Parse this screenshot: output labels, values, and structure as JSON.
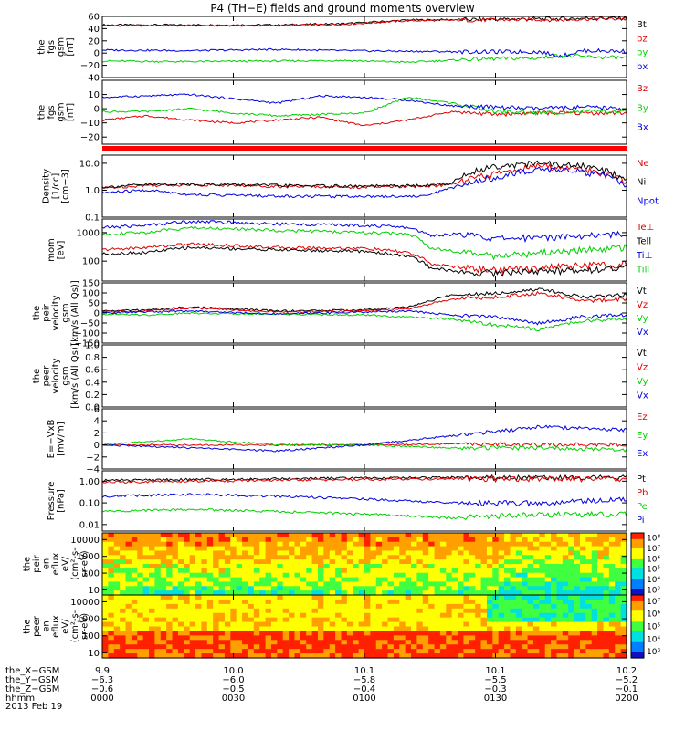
{
  "title": "P4 (TH−E) fields and ground moments overview",
  "date_label": "2013 Feb 19",
  "colors": {
    "black": "#000000",
    "red": "#e00000",
    "green": "#00d000",
    "blue": "#0000e0"
  },
  "chart_data": [
    {
      "type": "line",
      "ylabel": [
        "the",
        "fgs",
        "gsm",
        "[nT]"
      ],
      "ylim": [
        -40,
        60
      ],
      "yticks": [
        {
          "v": -40,
          "label": "−40"
        },
        {
          "v": -20,
          "label": "−20"
        },
        {
          "v": 0,
          "label": "0"
        },
        {
          "v": 20,
          "label": "20"
        },
        {
          "v": 40,
          "label": "40"
        },
        {
          "v": 60,
          "label": "60"
        }
      ],
      "series": [
        {
          "name": "Bt",
          "color": "#000000",
          "x": [
            0,
            20,
            40,
            55,
            70,
            85,
            100,
            105,
            110,
            120
          ],
          "y": [
            46,
            46,
            46,
            48,
            54,
            55,
            56,
            56,
            57,
            57
          ]
        },
        {
          "name": "bz",
          "color": "#e00000",
          "x": [
            0,
            20,
            40,
            55,
            70,
            85,
            100,
            105,
            110,
            120
          ],
          "y": [
            45,
            45,
            45,
            47,
            53,
            54,
            55,
            54,
            56,
            56
          ]
        },
        {
          "name": "by",
          "color": "#00d000",
          "x": [
            0,
            20,
            40,
            55,
            70,
            85,
            100,
            105,
            110,
            120
          ],
          "y": [
            -13,
            -14,
            -13,
            -12,
            -15,
            -10,
            -8,
            -4,
            -6,
            -8
          ]
        },
        {
          "name": "bx",
          "color": "#0000e0",
          "x": [
            0,
            20,
            40,
            55,
            70,
            85,
            100,
            105,
            110,
            120
          ],
          "y": [
            5,
            4,
            6,
            4,
            3,
            2,
            2,
            -5,
            4,
            3
          ]
        }
      ]
    },
    {
      "type": "line",
      "ylabel": [
        "the",
        "fgs",
        "gsm",
        "[nT]"
      ],
      "ylim": [
        -25,
        20
      ],
      "yticks": [
        {
          "v": -20,
          "label": "−20"
        },
        {
          "v": -10,
          "label": "−10"
        },
        {
          "v": 0,
          "label": "0"
        },
        {
          "v": 10,
          "label": "10"
        }
      ],
      "series": [
        {
          "name": "Bz",
          "color": "#e00000",
          "x": [
            0,
            10,
            20,
            30,
            40,
            50,
            60,
            70,
            80,
            90,
            100,
            110,
            120
          ],
          "y": [
            -8,
            -5,
            -8,
            -10,
            -8,
            -6,
            -12,
            -8,
            -2,
            -4,
            -3,
            -3,
            -3
          ]
        },
        {
          "name": "By",
          "color": "#00d000",
          "x": [
            0,
            10,
            20,
            30,
            40,
            50,
            60,
            70,
            80,
            90,
            100,
            110,
            120
          ],
          "y": [
            -2,
            -2,
            0,
            -3,
            -5,
            -4,
            -3,
            8,
            4,
            -2,
            -3,
            -2,
            -2
          ]
        },
        {
          "name": "Bx",
          "color": "#0000e0",
          "x": [
            0,
            10,
            20,
            30,
            40,
            50,
            60,
            70,
            80,
            90,
            100,
            110,
            120
          ],
          "y": [
            8,
            9,
            10,
            7,
            4,
            9,
            8,
            6,
            2,
            1,
            0,
            1,
            0
          ]
        }
      ]
    },
    {
      "type": "line",
      "ylabel": [
        "Density",
        "[1/cc]",
        "[cm−3]"
      ],
      "yscale": "log",
      "ylim": [
        0.1,
        20
      ],
      "yticks": [
        {
          "v": 0.1,
          "label": "0.1"
        },
        {
          "v": 1,
          "label": "1.0"
        },
        {
          "v": 10,
          "label": "10.0"
        }
      ],
      "series": [
        {
          "name": "Ne",
          "color": "#e00000",
          "x": [
            0,
            10,
            20,
            40,
            60,
            74,
            80,
            90,
            100,
            110,
            120
          ],
          "y": [
            1.2,
            1.5,
            1.6,
            1.4,
            1.3,
            1.4,
            1.6,
            4,
            8,
            6,
            2
          ]
        },
        {
          "name": "Ni",
          "color": "#000000",
          "x": [
            0,
            10,
            20,
            40,
            60,
            74,
            80,
            90,
            100,
            110,
            120
          ],
          "y": [
            1.3,
            1.6,
            1.7,
            1.5,
            1.4,
            1.5,
            1.8,
            8,
            10,
            8,
            2.5
          ]
        },
        {
          "name": "Npot",
          "color": "#0000e0",
          "x": [
            0,
            10,
            20,
            40,
            60,
            74,
            80,
            90,
            100,
            110,
            120
          ],
          "y": [
            0.8,
            1.0,
            0.7,
            0.6,
            0.6,
            0.6,
            1.2,
            3,
            6,
            5,
            1.5
          ]
        }
      ]
    },
    {
      "type": "line",
      "ylabel": [
        "mom",
        "[eV]"
      ],
      "yscale": "log",
      "ylim": [
        20,
        3000
      ],
      "yticks": [
        {
          "v": 100,
          "label": "100"
        },
        {
          "v": 1000,
          "label": "1000"
        }
      ],
      "series": [
        {
          "name": "Te⊥",
          "color": "#e00000",
          "x": [
            0,
            10,
            20,
            40,
            60,
            70,
            75,
            82,
            90,
            100,
            110,
            120
          ],
          "y": [
            250,
            300,
            400,
            300,
            280,
            200,
            80,
            60,
            50,
            60,
            70,
            80
          ]
        },
        {
          "name": "Tell",
          "color": "#000000",
          "x": [
            0,
            10,
            20,
            40,
            60,
            70,
            75,
            82,
            90,
            100,
            110,
            120
          ],
          "y": [
            180,
            200,
            300,
            250,
            220,
            150,
            60,
            40,
            40,
            45,
            50,
            60
          ]
        },
        {
          "name": "Ti⊥",
          "color": "#0000e0",
          "x": [
            0,
            10,
            20,
            40,
            60,
            70,
            75,
            82,
            90,
            100,
            110,
            120
          ],
          "y": [
            1500,
            1800,
            2500,
            2000,
            1800,
            1500,
            800,
            900,
            600,
            700,
            800,
            900
          ]
        },
        {
          "name": "Till",
          "color": "#00d000",
          "x": [
            0,
            10,
            20,
            40,
            60,
            70,
            75,
            82,
            90,
            100,
            110,
            120
          ],
          "y": [
            900,
            1000,
            1500,
            1200,
            1000,
            900,
            300,
            200,
            150,
            200,
            250,
            300
          ]
        }
      ]
    },
    {
      "type": "line",
      "ylabel": [
        "the",
        "peir",
        "velocity",
        "gsm",
        "[km/s (All Qs)]"
      ],
      "ylim": [
        -150,
        150
      ],
      "yticks": [
        {
          "v": -150,
          "label": "−150"
        },
        {
          "v": -100,
          "label": "−100"
        },
        {
          "v": -50,
          "label": "−50"
        },
        {
          "v": 0,
          "label": "0"
        },
        {
          "v": 50,
          "label": "50"
        },
        {
          "v": 100,
          "label": "100"
        },
        {
          "v": 150,
          "label": "150"
        }
      ],
      "series": [
        {
          "name": "Vt",
          "color": "#000000",
          "x": [
            0,
            10,
            20,
            40,
            60,
            70,
            80,
            90,
            100,
            110,
            120
          ],
          "y": [
            10,
            15,
            30,
            10,
            15,
            30,
            90,
            100,
            120,
            80,
            90
          ]
        },
        {
          "name": "Vz",
          "color": "#e00000",
          "x": [
            0,
            10,
            20,
            40,
            60,
            70,
            80,
            90,
            100,
            110,
            120
          ],
          "y": [
            5,
            10,
            25,
            5,
            10,
            20,
            70,
            80,
            100,
            60,
            70
          ]
        },
        {
          "name": "Vy",
          "color": "#00d000",
          "x": [
            0,
            10,
            20,
            40,
            60,
            70,
            80,
            90,
            100,
            110,
            120
          ],
          "y": [
            -5,
            -10,
            0,
            -5,
            -10,
            -20,
            -30,
            -60,
            -80,
            -40,
            -30
          ]
        },
        {
          "name": "Vx",
          "color": "#0000e0",
          "x": [
            0,
            10,
            20,
            40,
            60,
            70,
            80,
            90,
            100,
            110,
            120
          ],
          "y": [
            0,
            5,
            10,
            -5,
            5,
            10,
            -10,
            -20,
            -50,
            -20,
            -10
          ]
        }
      ]
    },
    {
      "type": "line",
      "ylabel": [
        "the",
        "peer",
        "velocity",
        "gsm",
        "[km/s (All Qs)]"
      ],
      "ylim": [
        0,
        1
      ],
      "yticks": [
        {
          "v": 0,
          "label": "0.0"
        },
        {
          "v": 0.2,
          "label": "0.2"
        },
        {
          "v": 0.4,
          "label": "0.4"
        },
        {
          "v": 0.6,
          "label": "0.6"
        },
        {
          "v": 0.8,
          "label": "0.8"
        },
        {
          "v": 1.0,
          "label": "1.0"
        }
      ],
      "series": [
        {
          "name": "Vt",
          "color": "#000000",
          "x": [],
          "y": []
        },
        {
          "name": "Vz",
          "color": "#e00000",
          "x": [],
          "y": []
        },
        {
          "name": "Vy",
          "color": "#00d000",
          "x": [],
          "y": []
        },
        {
          "name": "Vx",
          "color": "#0000e0",
          "x": [],
          "y": []
        }
      ]
    },
    {
      "type": "line",
      "ylabel": [
        "E=−VxB",
        "[mV/m]"
      ],
      "ylim": [
        -4,
        6
      ],
      "yticks": [
        {
          "v": -4,
          "label": "−4"
        },
        {
          "v": -2,
          "label": "−2"
        },
        {
          "v": 0,
          "label": "0"
        },
        {
          "v": 2,
          "label": "2"
        },
        {
          "v": 4,
          "label": "4"
        },
        {
          "v": 6,
          "label": "6"
        }
      ],
      "series": [
        {
          "name": "Ez",
          "color": "#e00000",
          "x": [
            0,
            20,
            40,
            60,
            80,
            100,
            120
          ],
          "y": [
            0,
            0,
            0,
            0,
            0.2,
            0,
            0.1
          ]
        },
        {
          "name": "Ey",
          "color": "#00d000",
          "x": [
            0,
            20,
            40,
            60,
            80,
            100,
            120
          ],
          "y": [
            0,
            1.0,
            0,
            0,
            -0.5,
            -0.5,
            -0.8
          ]
        },
        {
          "name": "Ex",
          "color": "#0000e0",
          "x": [
            0,
            20,
            40,
            60,
            80,
            100,
            120
          ],
          "y": [
            0,
            -0.5,
            -1,
            0,
            1.5,
            3,
            2.5
          ]
        }
      ]
    },
    {
      "type": "line",
      "ylabel": [
        "Pressure",
        "[nPa]"
      ],
      "yscale": "log",
      "ylim": [
        0.005,
        3
      ],
      "yticks": [
        {
          "v": 0.01,
          "label": "0.01"
        },
        {
          "v": 0.1,
          "label": "0.10"
        },
        {
          "v": 1,
          "label": "1.00"
        }
      ],
      "series": [
        {
          "name": "Pt",
          "color": "#000000",
          "x": [
            0,
            20,
            40,
            60,
            80,
            100,
            120
          ],
          "y": [
            1.1,
            1.2,
            1.3,
            1.4,
            1.5,
            1.5,
            1.5
          ]
        },
        {
          "name": "Pb",
          "color": "#e00000",
          "x": [
            0,
            20,
            40,
            60,
            80,
            100,
            120
          ],
          "y": [
            0.9,
            1.0,
            1.1,
            1.2,
            1.3,
            1.3,
            1.3
          ]
        },
        {
          "name": "Pe",
          "color": "#00d000",
          "x": [
            0,
            20,
            40,
            60,
            80,
            100,
            120
          ],
          "y": [
            0.04,
            0.05,
            0.04,
            0.03,
            0.02,
            0.03,
            0.03
          ]
        },
        {
          "name": "Pi",
          "color": "#0000e0",
          "x": [
            0,
            20,
            40,
            60,
            80,
            100,
            120
          ],
          "y": [
            0.2,
            0.25,
            0.2,
            0.15,
            0.1,
            0.1,
            0.15
          ]
        }
      ]
    },
    {
      "type": "heatmap",
      "ylabel": [
        "the",
        "peir",
        "en",
        "eflux",
        "eV/",
        "(cm²-s-",
        "sr-eV)"
      ],
      "yscale": "log",
      "ylim": [
        5,
        25000
      ],
      "yticks": [
        {
          "v": 10,
          "label": "10"
        },
        {
          "v": 100,
          "label": "100"
        },
        {
          "v": 1000,
          "label": "1000"
        },
        {
          "v": 10000,
          "label": "10000"
        }
      ],
      "colorbar_ticks": [
        "10³",
        "10⁴",
        "10⁵",
        "10⁶",
        "10⁷",
        "10⁸"
      ]
    },
    {
      "type": "heatmap",
      "ylabel": [
        "the",
        "peer",
        "en",
        "eflux",
        "eV/",
        "(cm²-s-",
        "sr-eV)"
      ],
      "yscale": "log",
      "ylim": [
        5,
        25000
      ],
      "yticks": [
        {
          "v": 10,
          "label": "10"
        },
        {
          "v": 100,
          "label": "100"
        },
        {
          "v": 1000,
          "label": "1000"
        },
        {
          "v": 10000,
          "label": "10000"
        }
      ],
      "colorbar_ticks": [
        "10³",
        "10⁴",
        "10⁵",
        "10⁶",
        "10⁷"
      ]
    }
  ],
  "x_axis": {
    "range_minutes": [
      0,
      120
    ],
    "tick_minutes": [
      0,
      30,
      60,
      90,
      120
    ],
    "rows": [
      {
        "label": "the_X−GSM",
        "values": [
          "9.9",
          "10.0",
          "10.1",
          "10.1",
          "10.2"
        ]
      },
      {
        "label": "the_Y−GSM",
        "values": [
          "−6.3",
          "−6.0",
          "−5.8",
          "−5.5",
          "−5.2"
        ]
      },
      {
        "label": "the_Z−GSM",
        "values": [
          "−0.6",
          "−0.5",
          "−0.4",
          "−0.3",
          "−0.1"
        ]
      },
      {
        "label": "hhmm",
        "values": [
          "0000",
          "0030",
          "0100",
          "0130",
          "0200"
        ]
      }
    ]
  }
}
